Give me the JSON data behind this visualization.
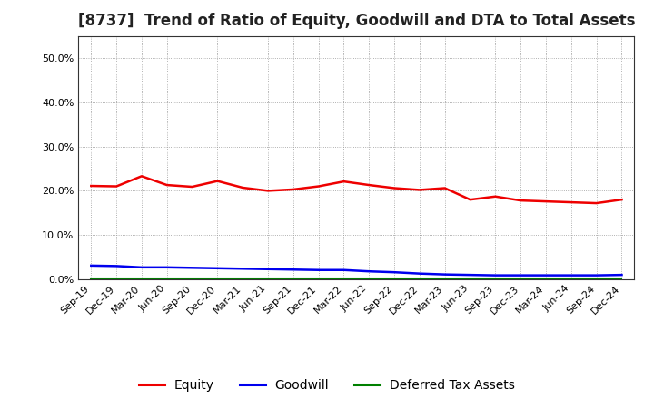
{
  "title": "[8737]  Trend of Ratio of Equity, Goodwill and DTA to Total Assets",
  "x_labels": [
    "Sep-19",
    "Dec-19",
    "Mar-20",
    "Jun-20",
    "Sep-20",
    "Dec-20",
    "Mar-21",
    "Jun-21",
    "Sep-21",
    "Dec-21",
    "Mar-22",
    "Jun-22",
    "Sep-22",
    "Dec-22",
    "Mar-23",
    "Jun-23",
    "Sep-23",
    "Dec-23",
    "Mar-24",
    "Jun-24",
    "Sep-24",
    "Dec-24"
  ],
  "equity": [
    0.211,
    0.21,
    0.233,
    0.213,
    0.209,
    0.222,
    0.207,
    0.2,
    0.203,
    0.21,
    0.221,
    0.213,
    0.206,
    0.202,
    0.206,
    0.18,
    0.187,
    0.178,
    0.176,
    0.174,
    0.172,
    0.18
  ],
  "goodwill": [
    0.031,
    0.03,
    0.027,
    0.027,
    0.026,
    0.025,
    0.024,
    0.023,
    0.022,
    0.021,
    0.021,
    0.018,
    0.016,
    0.013,
    0.011,
    0.01,
    0.009,
    0.009,
    0.009,
    0.009,
    0.009,
    0.01
  ],
  "dta": [
    0.0008,
    0.0008,
    0.0008,
    0.0008,
    0.0008,
    0.0008,
    0.0008,
    0.0008,
    0.0008,
    0.0008,
    0.0008,
    0.0008,
    0.0008,
    0.0008,
    0.0008,
    0.0008,
    0.0008,
    0.0008,
    0.0008,
    0.0008,
    0.0008,
    0.0008
  ],
  "equity_color": "#ee0000",
  "goodwill_color": "#0000ee",
  "dta_color": "#008000",
  "ylim": [
    0.0,
    0.55
  ],
  "yticks": [
    0.0,
    0.1,
    0.2,
    0.3,
    0.4,
    0.5
  ],
  "background_color": "#ffffff",
  "grid_color": "#999999",
  "legend_labels": [
    "Equity",
    "Goodwill",
    "Deferred Tax Assets"
  ],
  "title_fontsize": 12,
  "tick_fontsize": 8,
  "legend_fontsize": 10
}
